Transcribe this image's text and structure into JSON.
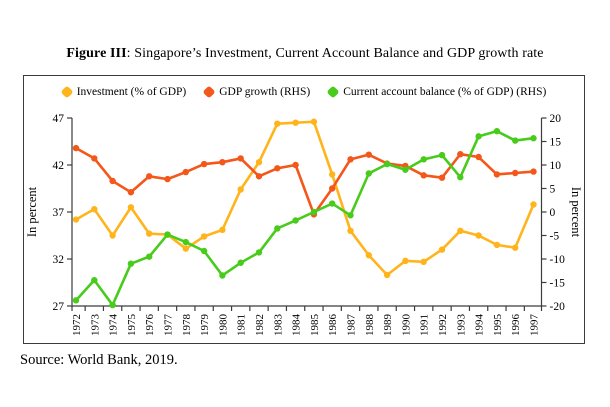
{
  "title": {
    "prefix": "Figure III",
    "rest": ": Singapore’s Investment, Current Account Balance and GDP growth rate"
  },
  "source": "Source: World Bank, 2019.",
  "chart_data": {
    "type": "line",
    "title": "Figure III: Singapore’s Investment, Current Account Balance and GDP growth rate",
    "x": [
      1972,
      1973,
      1974,
      1975,
      1976,
      1977,
      1978,
      1979,
      1980,
      1981,
      1982,
      1983,
      1984,
      1985,
      1986,
      1987,
      1988,
      1989,
      1990,
      1991,
      1992,
      1993,
      1994,
      1995,
      1996,
      1997
    ],
    "series": [
      {
        "name": "Investment (% of GDP)",
        "axis": "left",
        "color": "#FFB41C",
        "values": [
          36.2,
          37.3,
          34.5,
          37.5,
          34.7,
          34.6,
          33.1,
          34.4,
          35.1,
          39.4,
          42.3,
          46.4,
          46.5,
          46.6,
          41.0,
          35.0,
          32.4,
          30.3,
          31.8,
          31.7,
          33.0,
          35.0,
          34.5,
          33.5,
          33.2,
          37.8
        ]
      },
      {
        "name": "GDP growth (RHS)",
        "axis": "right",
        "color": "#F4571A",
        "values": [
          13.6,
          11.4,
          6.6,
          4.2,
          7.6,
          7.0,
          8.5,
          10.2,
          10.6,
          11.4,
          7.6,
          9.3,
          10.0,
          -0.5,
          5.0,
          11.2,
          12.2,
          10.3,
          9.8,
          7.8,
          7.3,
          12.3,
          11.7,
          8.0,
          8.3,
          8.6
        ]
      },
      {
        "name": "Current account balance (% of GDP) (RHS)",
        "axis": "right",
        "color": "#48CC1C",
        "values": [
          -18.8,
          -14.5,
          -19.8,
          -11.0,
          -9.5,
          -4.8,
          -6.4,
          -8.3,
          -13.5,
          -10.8,
          -8.6,
          -3.5,
          -1.8,
          0.0,
          1.8,
          -0.7,
          8.2,
          10.2,
          9.0,
          11.2,
          12.1,
          7.4,
          16.1,
          17.2,
          15.2,
          15.7
        ]
      }
    ],
    "left_axis": {
      "label": "In percent",
      "min": 27,
      "max": 47,
      "ticks": [
        27,
        32,
        37,
        42,
        47
      ]
    },
    "right_axis": {
      "label": "In percent",
      "min": -20,
      "max": 20,
      "ticks": [
        -20,
        -15,
        -10,
        -5,
        0,
        5,
        10,
        15,
        20
      ]
    },
    "legend_position": "top",
    "grid": false,
    "axis_color": "#3c3c3c"
  }
}
